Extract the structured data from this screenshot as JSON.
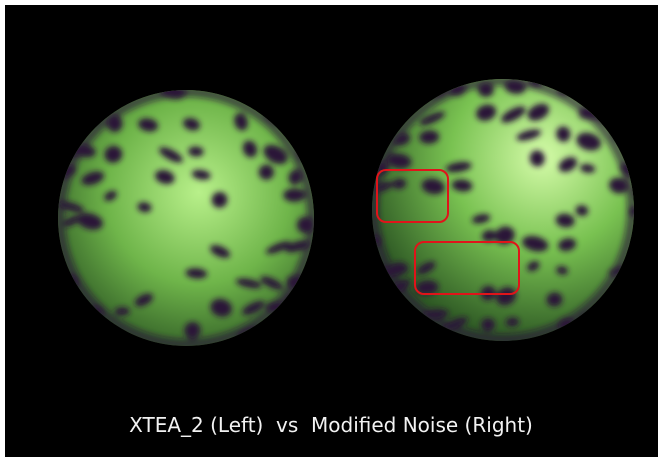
{
  "caption": "XTEA_2 (Left)  vs  Modified Noise (Right)"
}
